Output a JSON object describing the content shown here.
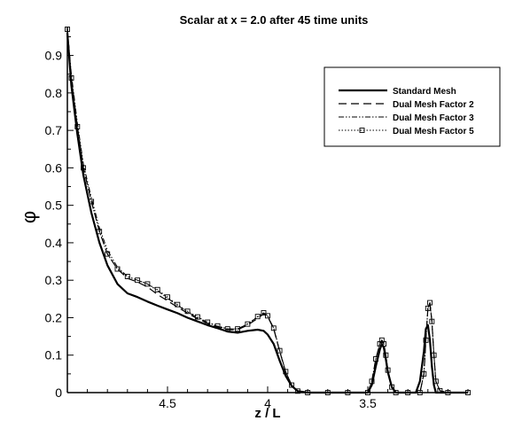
{
  "chart_data": {
    "type": "line",
    "title": "Scalar at x = 2.0 after 45 time units",
    "xlabel": "z / L",
    "ylabel": "φ",
    "x_reversed": true,
    "xlim": [
      5.0,
      3.0
    ],
    "ylim": [
      0,
      0.97
    ],
    "x_ticks": [
      4.5,
      4,
      3.5
    ],
    "x_tick_labels": [
      "4.5",
      "4",
      "3.5"
    ],
    "y_ticks": [
      0,
      0.1,
      0.2,
      0.3,
      0.4,
      0.5,
      0.6,
      0.7,
      0.8,
      0.9
    ],
    "y_tick_labels": [
      "0",
      "0.1",
      "0.2",
      "0.3",
      "0.4",
      "0.5",
      "0.6",
      "0.7",
      "0.8",
      "0.9"
    ],
    "grid": false,
    "legend_position": "top-right",
    "series": [
      {
        "name": "Standard Mesh",
        "style": "solid-thick",
        "x": [
          5.0,
          4.98,
          4.95,
          4.92,
          4.88,
          4.84,
          4.8,
          4.75,
          4.7,
          4.65,
          4.6,
          4.55,
          4.5,
          4.45,
          4.4,
          4.35,
          4.3,
          4.25,
          4.2,
          4.15,
          4.1,
          4.05,
          4.02,
          4.0,
          3.97,
          3.94,
          3.91,
          3.88,
          3.85,
          3.8,
          3.7,
          3.6,
          3.5,
          3.48,
          3.46,
          3.44,
          3.43,
          3.42,
          3.41,
          3.4,
          3.38,
          3.36,
          3.34,
          3.3,
          3.26,
          3.24,
          3.22,
          3.21,
          3.2,
          3.19,
          3.18,
          3.17,
          3.16,
          3.14,
          3.1,
          3.0
        ],
        "y": [
          0.96,
          0.82,
          0.69,
          0.58,
          0.48,
          0.4,
          0.34,
          0.29,
          0.265,
          0.255,
          0.243,
          0.232,
          0.222,
          0.212,
          0.2,
          0.19,
          0.18,
          0.172,
          0.163,
          0.16,
          0.165,
          0.168,
          0.165,
          0.155,
          0.13,
          0.085,
          0.045,
          0.018,
          0.004,
          0.0,
          0.0,
          0.0,
          0.0,
          0.02,
          0.07,
          0.115,
          0.13,
          0.12,
          0.09,
          0.055,
          0.015,
          0.0,
          0.0,
          0.0,
          0.0,
          0.03,
          0.11,
          0.17,
          0.18,
          0.14,
          0.07,
          0.02,
          0.0,
          0.0,
          0.0,
          0.0
        ]
      },
      {
        "name": "Dual Mesh Factor 2",
        "style": "dashed",
        "x": [
          5.0,
          4.98,
          4.95,
          4.92,
          4.88,
          4.84,
          4.8,
          4.75,
          4.7,
          4.65,
          4.6,
          4.55,
          4.5,
          4.45,
          4.4,
          4.35,
          4.3,
          4.25,
          4.2,
          4.15,
          4.1,
          4.05,
          4.02,
          4.0,
          3.97,
          3.94,
          3.91,
          3.88,
          3.85,
          3.8,
          3.7,
          3.6,
          3.5,
          3.48,
          3.46,
          3.44,
          3.43,
          3.42,
          3.41,
          3.4,
          3.38,
          3.36,
          3.3,
          3.24,
          3.22,
          3.21,
          3.2,
          3.19,
          3.18,
          3.17,
          3.16,
          3.14,
          3.1,
          3.0
        ],
        "y": [
          0.97,
          0.84,
          0.71,
          0.6,
          0.51,
          0.43,
          0.37,
          0.33,
          0.305,
          0.295,
          0.282,
          0.262,
          0.245,
          0.228,
          0.212,
          0.197,
          0.185,
          0.175,
          0.168,
          0.168,
          0.18,
          0.198,
          0.21,
          0.203,
          0.17,
          0.11,
          0.055,
          0.02,
          0.004,
          0.0,
          0.0,
          0.0,
          0.0,
          0.03,
          0.09,
          0.13,
          0.14,
          0.13,
          0.1,
          0.06,
          0.015,
          0.0,
          0.0,
          0.0,
          0.05,
          0.14,
          0.225,
          0.24,
          0.19,
          0.1,
          0.03,
          0.005,
          0.0,
          0.0
        ]
      },
      {
        "name": "Dual Mesh Factor 3",
        "style": "dash-dot-dot",
        "x": [
          5.0,
          4.98,
          4.95,
          4.92,
          4.88,
          4.84,
          4.8,
          4.75,
          4.7,
          4.65,
          4.6,
          4.55,
          4.5,
          4.45,
          4.4,
          4.35,
          4.3,
          4.25,
          4.2,
          4.15,
          4.1,
          4.05,
          4.02,
          4.0,
          3.97,
          3.94,
          3.91,
          3.88,
          3.85,
          3.8,
          3.7,
          3.6,
          3.5,
          3.48,
          3.46,
          3.44,
          3.43,
          3.42,
          3.41,
          3.4,
          3.38,
          3.36,
          3.3,
          3.24,
          3.22,
          3.21,
          3.2,
          3.19,
          3.18,
          3.17,
          3.16,
          3.14,
          3.1,
          3.0
        ],
        "y": [
          0.97,
          0.85,
          0.72,
          0.61,
          0.52,
          0.44,
          0.38,
          0.335,
          0.31,
          0.3,
          0.29,
          0.272,
          0.252,
          0.233,
          0.215,
          0.2,
          0.187,
          0.177,
          0.17,
          0.17,
          0.183,
          0.202,
          0.213,
          0.205,
          0.172,
          0.112,
          0.056,
          0.02,
          0.004,
          0.0,
          0.0,
          0.0,
          0.0,
          0.03,
          0.09,
          0.13,
          0.14,
          0.13,
          0.1,
          0.06,
          0.015,
          0.0,
          0.0,
          0.0,
          0.05,
          0.14,
          0.225,
          0.24,
          0.19,
          0.1,
          0.03,
          0.005,
          0.0,
          0.0
        ]
      },
      {
        "name": "Dual Mesh Factor 5",
        "style": "dotted-square-markers",
        "x": [
          5.0,
          4.98,
          4.95,
          4.92,
          4.88,
          4.84,
          4.8,
          4.75,
          4.7,
          4.65,
          4.6,
          4.55,
          4.5,
          4.45,
          4.4,
          4.35,
          4.3,
          4.25,
          4.2,
          4.15,
          4.1,
          4.05,
          4.02,
          4.0,
          3.97,
          3.94,
          3.91,
          3.88,
          3.85,
          3.8,
          3.7,
          3.6,
          3.5,
          3.48,
          3.46,
          3.44,
          3.43,
          3.42,
          3.41,
          3.4,
          3.38,
          3.36,
          3.3,
          3.24,
          3.22,
          3.21,
          3.2,
          3.19,
          3.18,
          3.17,
          3.16,
          3.14,
          3.1,
          3.0
        ],
        "y": [
          0.97,
          0.84,
          0.71,
          0.6,
          0.51,
          0.43,
          0.37,
          0.33,
          0.31,
          0.3,
          0.29,
          0.275,
          0.255,
          0.235,
          0.217,
          0.202,
          0.188,
          0.178,
          0.17,
          0.17,
          0.183,
          0.203,
          0.213,
          0.205,
          0.172,
          0.112,
          0.056,
          0.02,
          0.004,
          0.0,
          0.0,
          0.0,
          0.0,
          0.03,
          0.09,
          0.13,
          0.14,
          0.13,
          0.1,
          0.06,
          0.015,
          0.0,
          0.0,
          0.0,
          0.05,
          0.14,
          0.225,
          0.24,
          0.19,
          0.1,
          0.03,
          0.005,
          0.0,
          0.0
        ]
      }
    ]
  }
}
